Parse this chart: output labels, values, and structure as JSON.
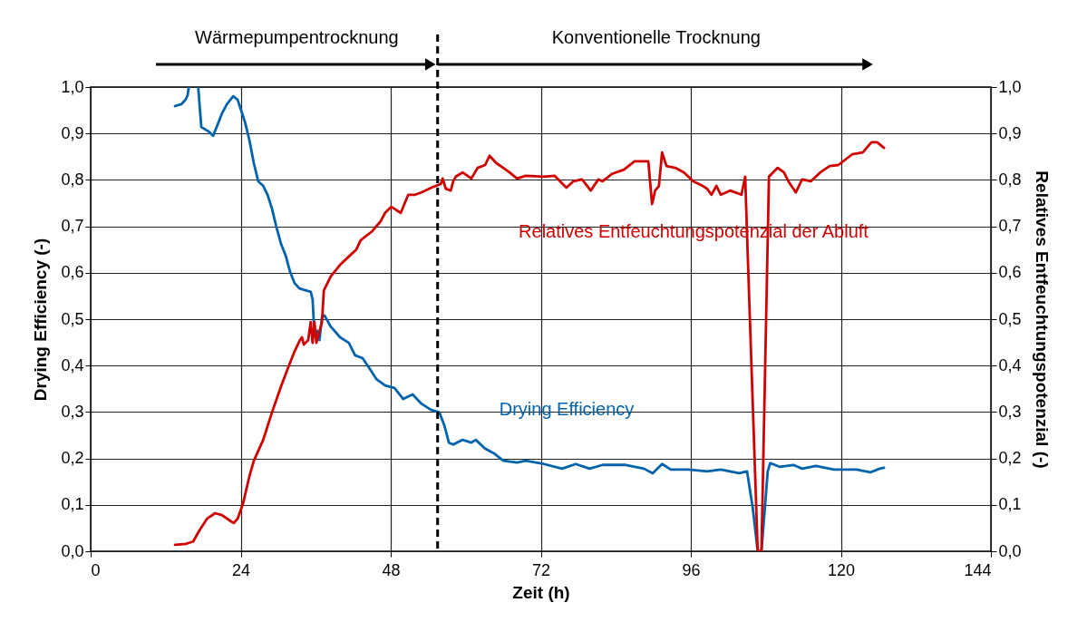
{
  "chart_data": {
    "type": "line",
    "xlabel": "Zeit (h)",
    "ylabel": "Drying Efficiency (-)",
    "y2label": "Relatives Entfeuchtungspotenzial (-)",
    "annotations": [
      "Wärmepumpentrocknung",
      "Konventionelle Trocknung"
    ],
    "xlim": [
      0,
      144
    ],
    "xticks": [
      0,
      24,
      48,
      72,
      96,
      120,
      144
    ],
    "ylim": [
      0,
      1
    ],
    "yticks": [
      {
        "value": 0,
        "label": "0,0"
      },
      {
        "value": 0.1,
        "label": "0,1"
      },
      {
        "value": 0.2,
        "label": "0,2"
      },
      {
        "value": 0.3,
        "label": "0,3"
      },
      {
        "value": 0.4,
        "label": "0,4"
      },
      {
        "value": 0.5,
        "label": "0,5"
      },
      {
        "value": 0.6,
        "label": "0,6"
      },
      {
        "value": 0.7,
        "label": "0,7"
      },
      {
        "value": 0.8,
        "label": "0,8"
      },
      {
        "value": 0.9,
        "label": "0,9"
      },
      {
        "value": 1,
        "label": "1,0"
      }
    ],
    "y2lim": [
      0,
      1
    ],
    "y2ticks": [
      {
        "value": 0,
        "label": "0,0"
      },
      {
        "value": 0.1,
        "label": "0,1"
      },
      {
        "value": 0.2,
        "label": "0,2"
      },
      {
        "value": 0.3,
        "label": "0,3"
      },
      {
        "value": 0.4,
        "label": "0,4"
      },
      {
        "value": 0.5,
        "label": "0,5"
      },
      {
        "value": 0.6,
        "label": "0,6"
      },
      {
        "value": 0.7,
        "label": "0,7"
      },
      {
        "value": 0.8,
        "label": "0,8"
      },
      {
        "value": 0.9,
        "label": "0,9"
      },
      {
        "value": 1,
        "label": "1,0"
      }
    ],
    "grid": true,
    "legend": false,
    "marker": "none",
    "line_style": "solid",
    "ref_lines": [
      {
        "axis": "x",
        "value": 55.5,
        "label": null,
        "color": "#000000",
        "line_style": "dashed"
      }
    ],
    "series": [
      {
        "name": "Drying Efficiency",
        "color": "#0063ac",
        "x": [
          13.5,
          14.5,
          15.2,
          15.5,
          15.7,
          16.5,
          17.2,
          17.7,
          18.9,
          19.6,
          21.0,
          21.8,
          22.8,
          23.5,
          24.7,
          25.4,
          26.1,
          26.8,
          27.6,
          28.3,
          29.0,
          29.7,
          30.5,
          31.2,
          31.9,
          32.6,
          33.4,
          35.2,
          35.5,
          35.8,
          36.2,
          36.6,
          37.0,
          37.4,
          38.4,
          39.9,
          41.3,
          42.3,
          43.5,
          44.5,
          45.7,
          47.1,
          48.6,
          50.0,
          51.5,
          52.9,
          54.4,
          55.8,
          56.6,
          57.3,
          58.0,
          59.5,
          60.9,
          61.6,
          63.1,
          64.5,
          66.0,
          68.2,
          69.6,
          72.5,
          75.4,
          77.6,
          79.8,
          81.9,
          85.6,
          88.5,
          89.9,
          91.4,
          92.8,
          95.7,
          98.6,
          100.8,
          103.7,
          105.0,
          105.9,
          106.7,
          107.3,
          108.3,
          108.7,
          110.2,
          112.4,
          113.8,
          116.0,
          118.9,
          122.5,
          124.7,
          126.2,
          126.9
        ],
        "values": [
          0.959,
          0.963,
          0.973,
          0.982,
          1.0,
          null,
          1.0,
          0.914,
          0.904,
          0.895,
          0.943,
          0.963,
          0.98,
          0.973,
          0.924,
          0.885,
          0.836,
          0.797,
          0.787,
          0.768,
          0.738,
          0.699,
          0.66,
          0.637,
          0.602,
          0.578,
          0.566,
          0.559,
          0.543,
          0.465,
          0.475,
          0.455,
          0.504,
          0.508,
          0.484,
          0.461,
          0.449,
          0.422,
          0.416,
          0.396,
          0.371,
          0.357,
          0.352,
          0.328,
          0.338,
          0.318,
          0.305,
          0.299,
          0.27,
          0.234,
          0.23,
          0.24,
          0.234,
          0.24,
          0.221,
          0.211,
          0.195,
          0.191,
          0.195,
          0.188,
          0.178,
          0.188,
          0.178,
          0.186,
          0.186,
          0.178,
          0.168,
          0.188,
          0.176,
          0.176,
          0.172,
          0.176,
          0.168,
          0.172,
          0.094,
          0.0,
          0.0,
          0.172,
          0.19,
          0.182,
          0.186,
          0.178,
          0.184,
          0.176,
          0.176,
          0.17,
          0.178,
          0.18
        ]
      },
      {
        "name": "Relatives Entfeuchtungspotenzial der Abluft",
        "color": "#d00000",
        "axis": "y2",
        "x": [
          13.5,
          15.2,
          16.4,
          17.4,
          18.6,
          19.9,
          21.0,
          22.5,
          22.9,
          23.5,
          24.4,
          25.4,
          26.1,
          27.6,
          29.0,
          30.5,
          31.6,
          32.6,
          33.4,
          33.8,
          34.1,
          34.8,
          35.2,
          35.5,
          35.8,
          36.1,
          37.0,
          37.3,
          38.4,
          39.9,
          41.3,
          42.5,
          43.2,
          45.0,
          46.4,
          47.1,
          48.1,
          49.0,
          49.6,
          50.8,
          51.9,
          52.9,
          54.8,
          56.0,
          56.3,
          56.8,
          57.6,
          58.0,
          58.4,
          59.5,
          60.9,
          61.9,
          63.1,
          63.8,
          64.9,
          66.0,
          67.0,
          68.2,
          69.6,
          72.5,
          74.2,
          76.1,
          77.2,
          78.6,
          80.0,
          81.2,
          81.9,
          83.4,
          85.3,
          87.0,
          89.2,
          89.8,
          90.3,
          90.9,
          91.4,
          92.1,
          93.5,
          94.9,
          96.4,
          97.9,
          98.6,
          99.3,
          100.1,
          100.8,
          102.3,
          104.1,
          104.7,
          105.0,
          106.7,
          107.3,
          108.5,
          109.9,
          110.9,
          111.6,
          112.8,
          113.8,
          115.2,
          116.7,
          118.2,
          119.6,
          121.8,
          123.5,
          124.9,
          125.8,
          126.9
        ],
        "values": [
          0.014,
          0.016,
          0.021,
          0.045,
          0.07,
          0.082,
          0.078,
          0.064,
          0.061,
          0.07,
          0.104,
          0.162,
          0.195,
          0.24,
          0.299,
          0.357,
          0.396,
          0.43,
          0.453,
          0.461,
          0.445,
          0.455,
          0.494,
          0.449,
          0.494,
          0.449,
          0.494,
          0.562,
          0.592,
          0.617,
          0.635,
          0.65,
          0.67,
          0.689,
          0.711,
          0.729,
          0.742,
          0.734,
          0.729,
          0.768,
          0.768,
          0.773,
          0.785,
          0.791,
          0.803,
          0.781,
          0.777,
          0.797,
          0.807,
          0.816,
          0.803,
          0.826,
          0.832,
          0.852,
          0.836,
          0.826,
          0.816,
          0.803,
          0.809,
          0.807,
          0.809,
          0.783,
          0.797,
          0.801,
          0.777,
          0.801,
          0.797,
          0.813,
          0.822,
          0.84,
          0.84,
          0.748,
          0.777,
          0.787,
          0.859,
          0.83,
          0.826,
          0.816,
          0.797,
          0.787,
          0.781,
          0.768,
          0.787,
          0.768,
          0.777,
          0.768,
          0.807,
          0.68,
          0.0,
          0.0,
          0.807,
          0.826,
          0.816,
          0.797,
          0.773,
          0.801,
          0.797,
          0.816,
          0.83,
          0.832,
          0.855,
          0.859,
          0.881,
          0.881,
          0.869
        ]
      }
    ]
  }
}
